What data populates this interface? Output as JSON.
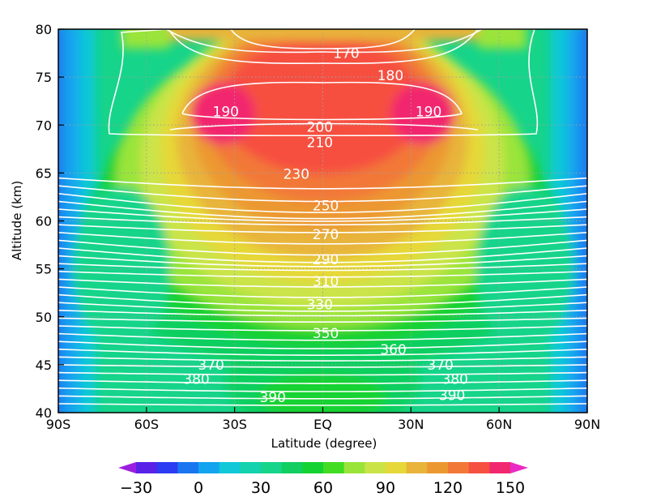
{
  "chart_data": {
    "type": "heatmap",
    "xlabel": "Latitude (degree)",
    "ylabel": "Altitude (km)",
    "xlim": [
      -90,
      90
    ],
    "ylim": [
      40,
      80
    ],
    "x_ticks": [
      {
        "value": -90,
        "label": "90S"
      },
      {
        "value": -60,
        "label": "60S"
      },
      {
        "value": -30,
        "label": "30S"
      },
      {
        "value": 0,
        "label": "EQ"
      },
      {
        "value": 30,
        "label": "30N"
      },
      {
        "value": 60,
        "label": "60N"
      },
      {
        "value": 90,
        "label": "90N"
      }
    ],
    "y_ticks": [
      {
        "value": 40,
        "label": "40"
      },
      {
        "value": 45,
        "label": "45"
      },
      {
        "value": 50,
        "label": "50"
      },
      {
        "value": 55,
        "label": "55"
      },
      {
        "value": 60,
        "label": "60"
      },
      {
        "value": 65,
        "label": "65"
      },
      {
        "value": 70,
        "label": "70"
      },
      {
        "value": 75,
        "label": "75"
      },
      {
        "value": 80,
        "label": "80"
      }
    ],
    "grid": "dotted",
    "colorbar": {
      "position": "bottom",
      "levels": [
        -30,
        -20,
        -10,
        0,
        10,
        20,
        30,
        40,
        50,
        60,
        70,
        80,
        90,
        100,
        110,
        120,
        130,
        140,
        150
      ],
      "colors": [
        "#9a1fe0",
        "#5a22e6",
        "#2c3cf2",
        "#1a76f0",
        "#12a4ee",
        "#10c8d8",
        "#14d2ac",
        "#16d48a",
        "#10cf60",
        "#14d232",
        "#42dc22",
        "#9ae43a",
        "#cae448",
        "#e6d838",
        "#e8b43a",
        "#ec9830",
        "#f27838",
        "#f65040",
        "#f2286e",
        "#ea2ac2"
      ],
      "tick_labels": [
        {
          "value": -30,
          "label": "−30"
        },
        {
          "value": 0,
          "label": "0"
        },
        {
          "value": 30,
          "label": "30"
        },
        {
          "value": 60,
          "label": "60"
        },
        {
          "value": 90,
          "label": "90"
        },
        {
          "value": 120,
          "label": "120"
        },
        {
          "value": 150,
          "label": "150"
        }
      ]
    },
    "contour_labels": [
      {
        "label": "170",
        "lat": 8,
        "alt": 77.5
      },
      {
        "label": "180",
        "lat": 23,
        "alt": 75.2
      },
      {
        "label": "190",
        "lat": -33,
        "alt": 71.4
      },
      {
        "label": "190",
        "lat": 36,
        "alt": 71.4
      },
      {
        "label": "200",
        "lat": -1,
        "alt": 69.8
      },
      {
        "label": "210",
        "lat": -1,
        "alt": 68.2
      },
      {
        "label": "230",
        "lat": -9,
        "alt": 64.9
      },
      {
        "label": "250",
        "lat": 1,
        "alt": 61.6
      },
      {
        "label": "270",
        "lat": 1,
        "alt": 58.6
      },
      {
        "label": "290",
        "lat": 1,
        "alt": 56.0
      },
      {
        "label": "310",
        "lat": 1,
        "alt": 53.7
      },
      {
        "label": "330",
        "lat": -1,
        "alt": 51.3
      },
      {
        "label": "350",
        "lat": 1,
        "alt": 48.3
      },
      {
        "label": "360",
        "lat": 24,
        "alt": 46.6
      },
      {
        "label": "370",
        "lat": -38,
        "alt": 45.0
      },
      {
        "label": "370",
        "lat": 40,
        "alt": 45.0
      },
      {
        "label": "380",
        "lat": -43,
        "alt": 43.5
      },
      {
        "label": "380",
        "lat": 45,
        "alt": 43.5
      },
      {
        "label": "390",
        "lat": -17,
        "alt": 41.6
      },
      {
        "label": "390",
        "lat": 44,
        "alt": 41.8
      }
    ]
  }
}
